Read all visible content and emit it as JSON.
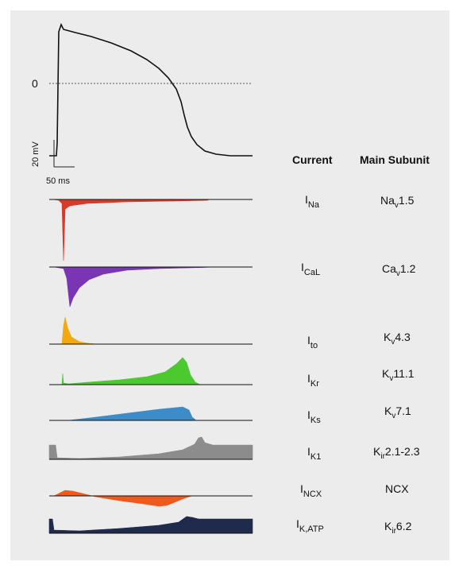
{
  "action_potential": {
    "zero_label": "0",
    "voltage_scale_label": "20 mV",
    "time_scale_label": "50 ms"
  },
  "table": {
    "header_current": "Current",
    "header_subunit": "Main Subunit",
    "rows": [
      {
        "current_main": "I",
        "current_sub": "Na",
        "subunit_main": "Na",
        "subunit_sub": "v",
        "subunit_rest": "1.5",
        "color": "#d63a2a"
      },
      {
        "current_main": "I",
        "current_sub": "CaL",
        "subunit_main": "Ca",
        "subunit_sub": "v",
        "subunit_rest": "1.2",
        "color": "#7a35b5"
      },
      {
        "current_main": "I",
        "current_sub": "to",
        "subunit_main": "K",
        "subunit_sub": "v",
        "subunit_rest": "4.3",
        "color": "#f2a80f"
      },
      {
        "current_main": "I",
        "current_sub": "Kr",
        "subunit_main": "K",
        "subunit_sub": "v",
        "subunit_rest": "11.1",
        "color": "#4dc930"
      },
      {
        "current_main": "I",
        "current_sub": "Ks",
        "subunit_main": "K",
        "subunit_sub": "v",
        "subunit_rest": "7.1",
        "color": "#3b8cc8"
      },
      {
        "current_main": "I",
        "current_sub": "K1",
        "subunit_main": "K",
        "subunit_sub": "ir",
        "subunit_rest": "2.1-2.3",
        "color": "#8c8c8c"
      },
      {
        "current_main": "I",
        "current_sub": "NCX",
        "subunit_main": "NCX",
        "subunit_sub": "",
        "subunit_rest": "",
        "color": "#ee5a1c"
      },
      {
        "current_main": "I",
        "current_sub": "K,ATP",
        "subunit_main": "K",
        "subunit_sub": "ir",
        "subunit_rest": "6.2",
        "color": "#1f2b4d"
      }
    ]
  }
}
